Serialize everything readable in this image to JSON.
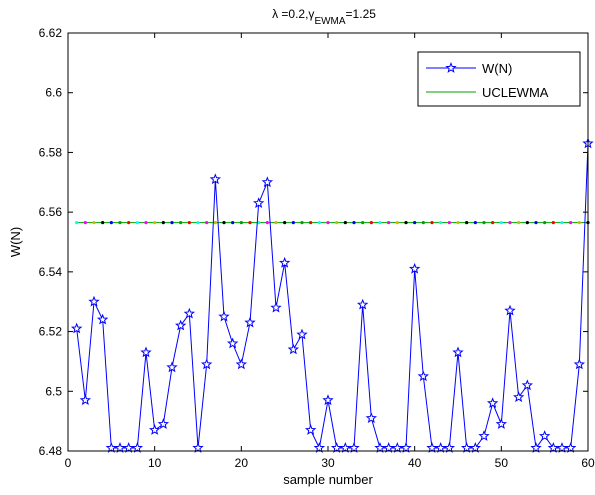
{
  "chart_data": {
    "type": "line",
    "title_main": "λ =0.2,γ",
    "title_sub": "EWMA",
    "title_tail": "=1.25",
    "xlabel": "sample number",
    "ylabel": "W(N)",
    "xlim": [
      0,
      60
    ],
    "ylim": [
      6.48,
      6.62
    ],
    "xticks": [
      0,
      10,
      20,
      30,
      40,
      50,
      60
    ],
    "yticks": [
      6.48,
      6.5,
      6.52,
      6.54,
      6.56,
      6.58,
      6.6,
      6.62
    ],
    "ytick_labels": [
      "6.48",
      "6.5",
      "6.52",
      "6.54",
      "6.56",
      "6.58",
      "6.6",
      "6.62"
    ],
    "legend_position": "top-right",
    "colors": {
      "series": "#0000ff",
      "ucl": "#00a000",
      "ucl_dots": [
        "#ff0000",
        "#00ffff",
        "#ff00ff",
        "#c0c000",
        "#000000",
        "#0000ff",
        "#00a000"
      ]
    },
    "series": [
      {
        "name": "W(N)",
        "x": [
          1,
          2,
          3,
          4,
          5,
          6,
          7,
          8,
          9,
          10,
          11,
          12,
          13,
          14,
          15,
          16,
          17,
          18,
          19,
          20,
          21,
          22,
          23,
          24,
          25,
          26,
          27,
          28,
          29,
          30,
          31,
          32,
          33,
          34,
          35,
          36,
          37,
          38,
          39,
          40,
          41,
          42,
          43,
          44,
          45,
          46,
          47,
          48,
          49,
          50,
          51,
          52,
          53,
          54,
          55,
          56,
          57,
          58,
          59,
          60
        ],
        "values": [
          6.521,
          6.497,
          6.53,
          6.524,
          6.481,
          6.481,
          6.481,
          6.481,
          6.513,
          6.487,
          6.489,
          6.508,
          6.522,
          6.526,
          6.481,
          6.509,
          6.571,
          6.525,
          6.516,
          6.509,
          6.523,
          6.563,
          6.57,
          6.528,
          6.543,
          6.514,
          6.519,
          6.487,
          6.481,
          6.497,
          6.481,
          6.481,
          6.481,
          6.529,
          6.491,
          6.481,
          6.481,
          6.481,
          6.481,
          6.541,
          6.505,
          6.481,
          6.481,
          6.481,
          6.513,
          6.481,
          6.481,
          6.485,
          6.496,
          6.489,
          6.527,
          6.498,
          6.502,
          6.481,
          6.485,
          6.481,
          6.481,
          6.481,
          6.509,
          6.583
        ]
      },
      {
        "name": "UCLEWMA",
        "x": [
          1,
          60
        ],
        "values": [
          6.5565,
          6.5565
        ]
      }
    ]
  }
}
